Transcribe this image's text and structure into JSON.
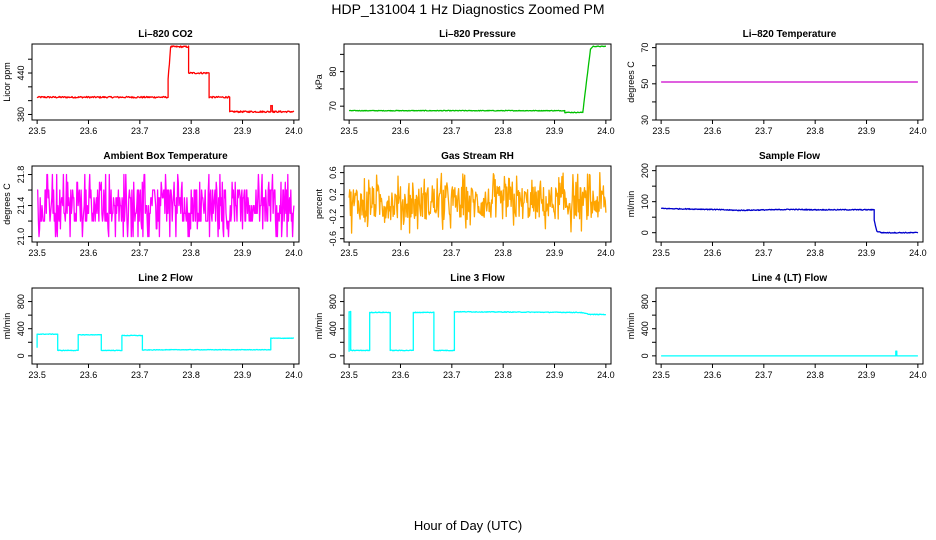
{
  "page": {
    "title": "HDP_131004  1 Hz Diagnostics Zoomed PM",
    "xlabel": "Hour of Day (UTC)"
  },
  "chart_data": [
    {
      "type": "line",
      "title": "Li–820 CO2",
      "ylabel": "Licor ppm",
      "color": "#ff0000",
      "xlim": [
        23.49,
        24.01
      ],
      "ylim": [
        372,
        482
      ],
      "xticks": [
        23.5,
        23.6,
        23.7,
        23.8,
        23.9,
        24.0
      ],
      "xtick_labels": [
        "23.5",
        "23.6",
        "23.7",
        "23.8",
        "23.9",
        "24.0"
      ],
      "yticks": [
        380,
        400,
        420,
        440,
        460
      ],
      "ytick_labels": [
        "380",
        "",
        "",
        "440",
        ""
      ],
      "series": [
        {
          "x": [
            23.5,
            23.755,
            23.755,
            23.76,
            23.795,
            23.795,
            23.8,
            23.835,
            23.835,
            23.87,
            23.875,
            23.875,
            23.955,
            23.955,
            23.958,
            23.958,
            23.96,
            24.0
          ],
          "y": [
            405,
            405,
            430,
            478,
            478,
            440,
            440,
            440,
            405,
            405,
            405,
            384,
            384,
            393,
            393,
            384,
            384,
            384
          ],
          "noise": 1.2
        }
      ]
    },
    {
      "type": "line",
      "title": "Li–820 Pressure",
      "ylabel": "kPa",
      "color": "#00c000",
      "xlim": [
        23.49,
        24.01
      ],
      "ylim": [
        66,
        88
      ],
      "xticks": [
        23.5,
        23.6,
        23.7,
        23.8,
        23.9,
        24.0
      ],
      "xtick_labels": [
        "23.5",
        "23.6",
        "23.7",
        "23.8",
        "23.9",
        "24.0"
      ],
      "yticks": [
        70,
        75,
        80,
        85
      ],
      "ytick_labels": [
        "70",
        "",
        "80",
        ""
      ],
      "series": [
        {
          "x": [
            23.5,
            23.92,
            23.92,
            23.955,
            23.97,
            23.975,
            24.0
          ],
          "y": [
            68.7,
            68.7,
            68.2,
            68.2,
            86.5,
            87.3,
            87.3
          ],
          "noise": 0.1
        }
      ]
    },
    {
      "type": "line",
      "title": "Li–820 Temperature",
      "ylabel": "degrees C",
      "color": "#cc00cc",
      "xlim": [
        23.49,
        24.01
      ],
      "ylim": [
        30,
        72
      ],
      "xticks": [
        23.5,
        23.6,
        23.7,
        23.8,
        23.9,
        24.0
      ],
      "xtick_labels": [
        "23.5",
        "23.6",
        "23.7",
        "23.8",
        "23.9",
        "24.0"
      ],
      "yticks": [
        30,
        40,
        50,
        60,
        70
      ],
      "ytick_labels": [
        "30",
        "",
        "50",
        "",
        "70"
      ],
      "series": [
        {
          "x": [
            23.5,
            24.0
          ],
          "y": [
            51,
            51
          ],
          "noise": 0
        }
      ]
    },
    {
      "type": "line",
      "title": "Ambient Box Temperature",
      "ylabel": "degrees C",
      "color": "#ff00ff",
      "xlim": [
        23.49,
        24.01
      ],
      "ylim": [
        20.93,
        21.91
      ],
      "xticks": [
        23.5,
        23.6,
        23.7,
        23.8,
        23.9,
        24.0
      ],
      "xtick_labels": [
        "23.5",
        "23.6",
        "23.7",
        "23.8",
        "23.9",
        "24.0"
      ],
      "yticks": [
        21.0,
        21.2,
        21.4,
        21.6,
        21.8
      ],
      "ytick_labels": [
        "21.0",
        "",
        "21.4",
        "",
        "21.8"
      ],
      "series": [
        {
          "x": [
            23.5,
            24.0
          ],
          "y": [
            21.3,
            21.3
          ],
          "noise": 0.3,
          "jitter": "levels",
          "levels": [
            21.0,
            21.1,
            21.2,
            21.3,
            21.4,
            21.5,
            21.6,
            21.7,
            21.8
          ]
        }
      ]
    },
    {
      "type": "line",
      "title": "Gas Stream RH",
      "ylabel": "percent",
      "color": "#ffa500",
      "xlim": [
        23.49,
        24.01
      ],
      "ylim": [
        -0.66,
        0.72
      ],
      "xticks": [
        23.5,
        23.6,
        23.7,
        23.8,
        23.9,
        24.0
      ],
      "xtick_labels": [
        "23.5",
        "23.6",
        "23.7",
        "23.8",
        "23.9",
        "24.0"
      ],
      "yticks": [
        -0.6,
        -0.4,
        -0.2,
        0.0,
        0.2,
        0.4,
        0.6
      ],
      "ytick_labels": [
        "-0.6",
        "",
        "-0.2",
        "",
        "0.2",
        "",
        "0.6"
      ],
      "series": [
        {
          "x": [
            23.5,
            24.0
          ],
          "y": [
            0.05,
            0.05
          ],
          "noise": 0.55,
          "jitter": "spread"
        }
      ]
    },
    {
      "type": "line",
      "title": "Sample Flow",
      "ylabel": "ml/min",
      "color": "#0000cc",
      "xlim": [
        23.49,
        24.01
      ],
      "ylim": [
        -30,
        215
      ],
      "xticks": [
        23.5,
        23.6,
        23.7,
        23.8,
        23.9,
        24.0
      ],
      "xtick_labels": [
        "23.5",
        "23.6",
        "23.7",
        "23.8",
        "23.9",
        "24.0"
      ],
      "yticks": [
        0,
        50,
        100,
        150,
        200
      ],
      "ytick_labels": [
        "0",
        "",
        "100",
        "",
        "200"
      ],
      "series": [
        {
          "x": [
            23.5,
            23.6,
            23.65,
            23.75,
            23.8,
            23.915,
            23.915,
            23.92,
            23.93,
            24.0
          ],
          "y": [
            78,
            75,
            72,
            75,
            74,
            74,
            40,
            5,
            0,
            0
          ],
          "noise": 1.5
        }
      ]
    },
    {
      "type": "line",
      "title": "Line 2 Flow",
      "ylabel": "ml/min",
      "color": "#00ffff",
      "xlim": [
        23.49,
        24.01
      ],
      "ylim": [
        -120,
        1000
      ],
      "xticks": [
        23.5,
        23.6,
        23.7,
        23.8,
        23.9,
        24.0
      ],
      "xtick_labels": [
        "23.5",
        "23.6",
        "23.7",
        "23.8",
        "23.9",
        "24.0"
      ],
      "yticks": [
        0,
        200,
        400,
        600,
        800
      ],
      "ytick_labels": [
        "0",
        "",
        "400",
        "",
        "800"
      ],
      "series": [
        {
          "x": [
            23.5,
            23.5,
            23.54,
            23.54,
            23.58,
            23.58,
            23.625,
            23.625,
            23.665,
            23.665,
            23.705,
            23.705,
            23.75,
            23.955,
            23.955,
            24.0
          ],
          "y": [
            120,
            320,
            320,
            80,
            80,
            310,
            310,
            80,
            80,
            300,
            300,
            85,
            90,
            90,
            260,
            260
          ],
          "noise": 4
        }
      ]
    },
    {
      "type": "line",
      "title": "Line 3 Flow",
      "ylabel": "ml/min",
      "color": "#00ffff",
      "xlim": [
        23.49,
        24.01
      ],
      "ylim": [
        -120,
        1000
      ],
      "xticks": [
        23.5,
        23.6,
        23.7,
        23.8,
        23.9,
        24.0
      ],
      "xtick_labels": [
        "23.5",
        "23.6",
        "23.7",
        "23.8",
        "23.9",
        "24.0"
      ],
      "yticks": [
        0,
        200,
        400,
        600,
        800
      ],
      "ytick_labels": [
        "0",
        "",
        "400",
        "",
        "800"
      ],
      "series": [
        {
          "x": [
            23.5,
            23.5,
            23.503,
            23.503,
            23.54,
            23.54,
            23.58,
            23.58,
            23.625,
            23.625,
            23.665,
            23.665,
            23.705,
            23.705,
            23.95,
            23.97,
            24.0
          ],
          "y": [
            60,
            650,
            650,
            80,
            80,
            640,
            640,
            80,
            80,
            640,
            640,
            80,
            80,
            650,
            640,
            610,
            610
          ],
          "noise": 5
        }
      ]
    },
    {
      "type": "line",
      "title": "Line 4 (LT) Flow",
      "ylabel": "ml/min",
      "color": "#00ffff",
      "xlim": [
        23.49,
        24.01
      ],
      "ylim": [
        -120,
        1000
      ],
      "xticks": [
        23.5,
        23.6,
        23.7,
        23.8,
        23.9,
        24.0
      ],
      "xtick_labels": [
        "23.5",
        "23.6",
        "23.7",
        "23.8",
        "23.9",
        "24.0"
      ],
      "yticks": [
        0,
        200,
        400,
        600,
        800
      ],
      "ytick_labels": [
        "0",
        "",
        "400",
        "",
        "800"
      ],
      "series": [
        {
          "x": [
            23.5,
            23.957,
            23.957,
            23.959,
            23.959,
            24.0
          ],
          "y": [
            0,
            0,
            70,
            70,
            0,
            0
          ],
          "noise": 0
        }
      ]
    }
  ]
}
